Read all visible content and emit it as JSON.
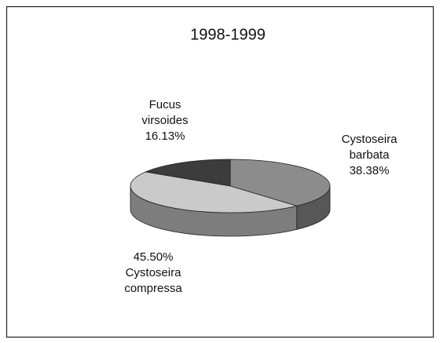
{
  "chart_data": {
    "type": "pie",
    "title": "1998-1999",
    "categories": [
      "Cystoseira barbata",
      "Cystoseira compressa",
      "Fucus virsoides"
    ],
    "values": [
      38.38,
      45.5,
      16.13
    ],
    "value_labels": [
      "38.38%",
      "45.50%",
      "16.13%"
    ],
    "colors": [
      "#8c8c8c",
      "#cacaca",
      "#3c3c3c"
    ]
  }
}
